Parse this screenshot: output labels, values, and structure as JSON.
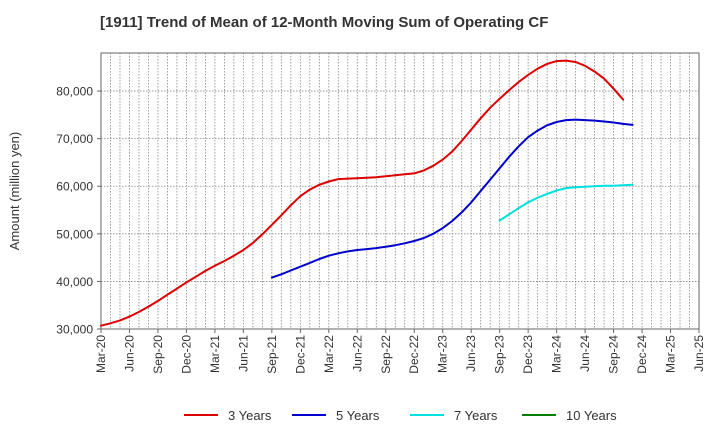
{
  "chart_data": {
    "type": "line",
    "title": "[1911]  Trend of Mean of 12-Month Moving Sum of Operating CF",
    "xlabel": "",
    "ylabel": "Amount (million yen)",
    "ylim": [
      30000,
      88000
    ],
    "yticks": [
      30000,
      40000,
      50000,
      60000,
      70000,
      80000
    ],
    "ytick_labels": [
      "30,000",
      "40,000",
      "50,000",
      "60,000",
      "70,000",
      "80,000"
    ],
    "x_tick_labels": [
      "Mar-20",
      "Jun-20",
      "Sep-20",
      "Dec-20",
      "Mar-21",
      "Jun-21",
      "Sep-21",
      "Dec-21",
      "Mar-22",
      "Jun-22",
      "Sep-22",
      "Dec-22",
      "Mar-23",
      "Jun-23",
      "Sep-23",
      "Dec-23",
      "Mar-24",
      "Jun-24",
      "Sep-24",
      "Dec-24",
      "Mar-25",
      "Jun-25"
    ],
    "x_start": "Mar-20",
    "months_total": 63,
    "grid": true,
    "legend_position": "bottom",
    "series": [
      {
        "name": "3 Years",
        "color": "#dd0000",
        "start_month_index": 0,
        "values": [
          30700,
          31200,
          31800,
          32600,
          33600,
          34700,
          35900,
          37200,
          38500,
          39800,
          41000,
          42200,
          43300,
          44300,
          45400,
          46600,
          48100,
          49900,
          51900,
          53900,
          56000,
          57900,
          59300,
          60300,
          61000,
          61500,
          61600,
          61700,
          61800,
          61900,
          62100,
          62300,
          62500,
          62700,
          63300,
          64300,
          65600,
          67300,
          69500,
          71900,
          74300,
          76500,
          78400,
          80200,
          81900,
          83400,
          84700,
          85700,
          86300,
          86400,
          86100,
          85300,
          84100,
          82600,
          80500,
          78200
        ]
      },
      {
        "name": "5 Years",
        "color": "#0000cc",
        "start_month_index": 18,
        "values": [
          40800,
          41500,
          42300,
          43100,
          43900,
          44700,
          45400,
          45900,
          46300,
          46600,
          46800,
          47000,
          47300,
          47600,
          48000,
          48500,
          49100,
          50000,
          51200,
          52700,
          54500,
          56600,
          59000,
          61400,
          63800,
          66200,
          68400,
          70300,
          71700,
          72800,
          73500,
          73900,
          74000,
          73900,
          73800,
          73600,
          73400,
          73100,
          72900
        ]
      },
      {
        "name": "7 Years",
        "color": "#00e0e0",
        "start_month_index": 42,
        "values": [
          52800,
          54100,
          55400,
          56600,
          57600,
          58400,
          59100,
          59600,
          59800,
          59900,
          60000,
          60100,
          60100,
          60200,
          60300
        ]
      },
      {
        "name": "10 Years",
        "color": "#008000",
        "start_month_index": 0,
        "values": []
      }
    ]
  }
}
